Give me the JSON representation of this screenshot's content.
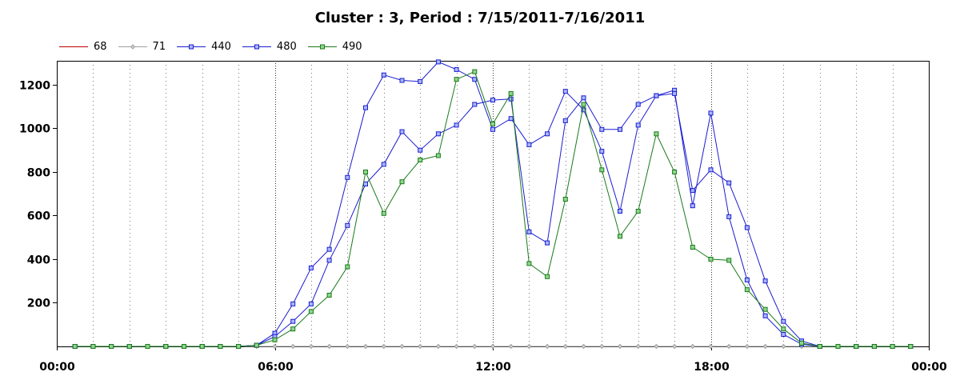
{
  "chart_data": {
    "type": "line",
    "title": "Cluster : 3, Period : 7/15/2011-7/16/2011",
    "xlabel": "",
    "ylabel": "",
    "x_tick_labels": [
      "00:00",
      "06:00",
      "12:00",
      "18:00",
      "00:00"
    ],
    "x_ticks_hours": [
      0,
      6,
      12,
      18,
      24
    ],
    "xlim_hours": [
      0,
      24
    ],
    "ylim": [
      0,
      1310
    ],
    "y_ticks": [
      200,
      400,
      600,
      800,
      1000,
      1200
    ],
    "grid": "vertical dotted",
    "legend_position": "top-left",
    "x_hours": [
      0.5,
      1,
      1.5,
      2,
      2.5,
      3,
      3.5,
      4,
      4.5,
      5,
      5.5,
      6,
      6.5,
      7,
      7.5,
      8,
      8.5,
      9,
      9.5,
      10,
      10.5,
      11,
      11.5,
      12,
      12.5,
      13,
      13.5,
      14,
      14.5,
      15,
      15.5,
      16,
      16.5,
      17,
      17.5,
      18,
      18.5,
      19,
      19.5,
      20,
      20.5,
      21,
      21.5,
      22,
      22.5,
      23,
      23.5
    ],
    "series": [
      {
        "name": "68",
        "color": "#c00000",
        "marker": "none",
        "values": [
          0,
          0,
          0,
          0,
          0,
          0,
          0,
          0,
          0,
          0,
          0,
          0,
          0,
          0,
          0,
          0,
          0,
          0,
          0,
          0,
          0,
          0,
          0,
          0,
          0,
          0,
          0,
          0,
          0,
          0,
          0,
          0,
          0,
          0,
          0,
          0,
          0,
          0,
          0,
          0,
          0,
          0,
          0,
          0,
          0,
          0,
          0
        ]
      },
      {
        "name": "71",
        "color": "#a0a0a0",
        "marker": "diamond",
        "values": [
          0,
          0,
          0,
          0,
          0,
          0,
          0,
          0,
          0,
          0,
          0,
          0,
          0,
          0,
          0,
          0,
          0,
          0,
          0,
          0,
          0,
          0,
          0,
          0,
          0,
          0,
          0,
          0,
          0,
          0,
          0,
          0,
          0,
          0,
          0,
          0,
          0,
          0,
          0,
          0,
          0,
          0,
          0,
          0,
          0,
          0,
          0
        ]
      },
      {
        "name": "440",
        "color": "#1c1cd0",
        "marker": "square",
        "values": [
          0,
          0,
          0,
          0,
          0,
          0,
          0,
          0,
          0,
          0,
          5,
          60,
          195,
          360,
          445,
          775,
          1095,
          1245,
          1220,
          1215,
          1305,
          1270,
          1225,
          995,
          1045,
          925,
          975,
          1170,
          1085,
          895,
          620,
          1015,
          1150,
          1175,
          645,
          1070,
          595,
          305,
          140,
          55,
          10,
          0,
          0,
          0,
          0,
          0,
          0
        ]
      },
      {
        "name": "480",
        "color": "#1c1cd0",
        "marker": "square",
        "values": [
          0,
          0,
          0,
          0,
          0,
          0,
          0,
          0,
          0,
          0,
          5,
          45,
          115,
          195,
          395,
          555,
          745,
          835,
          985,
          900,
          975,
          1015,
          1110,
          1130,
          1135,
          525,
          475,
          1035,
          1140,
          995,
          995,
          1110,
          1150,
          1160,
          715,
          810,
          750,
          545,
          300,
          115,
          25,
          0,
          0,
          0,
          0,
          0,
          0
        ]
      },
      {
        "name": "490",
        "color": "#1a7a1a",
        "marker": "square",
        "values": [
          0,
          0,
          0,
          0,
          0,
          0,
          0,
          0,
          0,
          0,
          5,
          30,
          80,
          160,
          235,
          365,
          800,
          610,
          755,
          855,
          875,
          1225,
          1260,
          1020,
          1160,
          380,
          320,
          675,
          1110,
          810,
          505,
          620,
          975,
          800,
          455,
          400,
          395,
          260,
          170,
          80,
          15,
          0,
          0,
          0,
          0,
          0,
          0
        ]
      }
    ]
  }
}
